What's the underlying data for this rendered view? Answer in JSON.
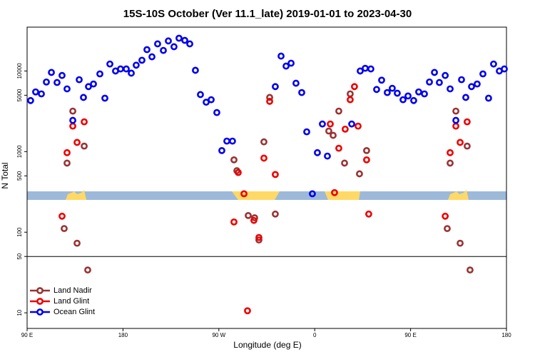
{
  "chart_data": {
    "type": "scatter",
    "title": "15S-10S October (Ver 11.1_late)   2019-01-01 to 2023-04-30",
    "xlabel": "Longitude (deg E)",
    "ylabel": "N Total",
    "xlim": [
      90,
      540
    ],
    "xticks": [
      {
        "value": 90,
        "label": "90 E"
      },
      180,
      {
        "value": 270,
        "label": "90 W"
      },
      {
        "value": 360,
        "label": "0"
      },
      {
        "value": 450,
        "label": "90 E"
      },
      {
        "value": 540,
        "label": "180"
      }
    ],
    "ylim": [
      6.4,
      35000
    ],
    "yscale": "log",
    "yticks": [
      10,
      50,
      100,
      500,
      1000,
      5000,
      10000
    ],
    "hline": 50,
    "legend": "lower left",
    "series": [
      {
        "name": "Land Nadir",
        "color": "#993333",
        "x": [
          124.8,
          127.5,
          132.9,
          136.9,
          143.6,
          146.9,
          284.2,
          286.9,
          297.6,
          303.6,
          307.6,
          312.3,
          317.7,
          323,
          373.2,
          377.3,
          382.6,
          388,
          393.3,
          402,
          408.7,
          484.4,
          487.1,
          492.5,
          496.5,
          503.1,
          505.8
        ],
        "values": [
          111,
          720,
          3180,
          73,
          1170,
          34,
          790,
          580,
          161,
          151,
          80,
          1320,
          4700,
          168,
          1800,
          1590,
          3180,
          720,
          5200,
          530,
          1030,
          111,
          720,
          3180,
          73,
          1170,
          34
        ]
      },
      {
        "name": "Land Glint",
        "color": "#ee0000",
        "x": [
          122.8,
          127.5,
          132.9,
          136.9,
          143.6,
          284.2,
          288.2,
          293.6,
          296.9,
          302.9,
          307.6,
          312.3,
          317.7,
          323,
          374.6,
          378.6,
          382.6,
          388.6,
          393.3,
          397.3,
          400.7,
          408.7,
          410.7,
          482.5,
          487.1,
          492.5,
          496.5,
          503.1
        ],
        "values": [
          158,
          970,
          2070,
          1300,
          2340,
          134,
          550,
          300,
          10.6,
          140,
          86,
          830,
          4200,
          520,
          2200,
          310,
          1100,
          1900,
          4400,
          6400,
          2070,
          790,
          168,
          158,
          970,
          2070,
          1300,
          2340
        ]
      },
      {
        "name": "Ocean Glint",
        "color": "#0000ee",
        "x": [
          93.3,
          98,
          103.4,
          108.1,
          112.8,
          118.1,
          122.8,
          127.5,
          132.9,
          138.9,
          142.9,
          147.6,
          152.3,
          158.3,
          163,
          167.7,
          173,
          177.7,
          183.1,
          187.8,
          192.4,
          197.8,
          202.5,
          207.2,
          212.5,
          217.9,
          222.6,
          227.9,
          232.6,
          238,
          242.7,
          248,
          252.7,
          258.1,
          262.8,
          268.1,
          272.8,
          277.5,
          282.8,
          323,
          328.4,
          333.1,
          337.8,
          342.4,
          347.8,
          352.5,
          357.8,
          362.5,
          367.2,
          371.9,
          394.7,
          402.7,
          407.4,
          412.7,
          418.1,
          422.8,
          428.1,
          432.8,
          437.5,
          442.9,
          447.6,
          452.9,
          457.6,
          463,
          467.7,
          472.4,
          477,
          482.5,
          487.1,
          492.5,
          497.8,
          501.8,
          507.2,
          512.5,
          517.9,
          523.2,
          527.9,
          533.3,
          538
        ],
        "values": [
          4300,
          5500,
          5200,
          7300,
          9600,
          7200,
          8800,
          6000,
          2440,
          7800,
          4700,
          6400,
          6900,
          9200,
          4600,
          12200,
          10000,
          10600,
          10600,
          9400,
          11800,
          13600,
          18400,
          15000,
          21700,
          18000,
          23600,
          20000,
          25500,
          24000,
          21700,
          10200,
          5100,
          4100,
          4400,
          3050,
          1030,
          1350,
          1350,
          6400,
          15300,
          11500,
          12500,
          7050,
          5400,
          1760,
          300,
          970,
          2200,
          880,
          2200,
          10000,
          10800,
          10600,
          5900,
          7700,
          5400,
          6100,
          5300,
          4400,
          4900,
          4300,
          5500,
          5200,
          7300,
          9600,
          7200,
          8800,
          6000,
          2440,
          7800,
          4700,
          6400,
          6900,
          9200,
          4600,
          12200,
          10000,
          10600
        ]
      }
    ]
  }
}
